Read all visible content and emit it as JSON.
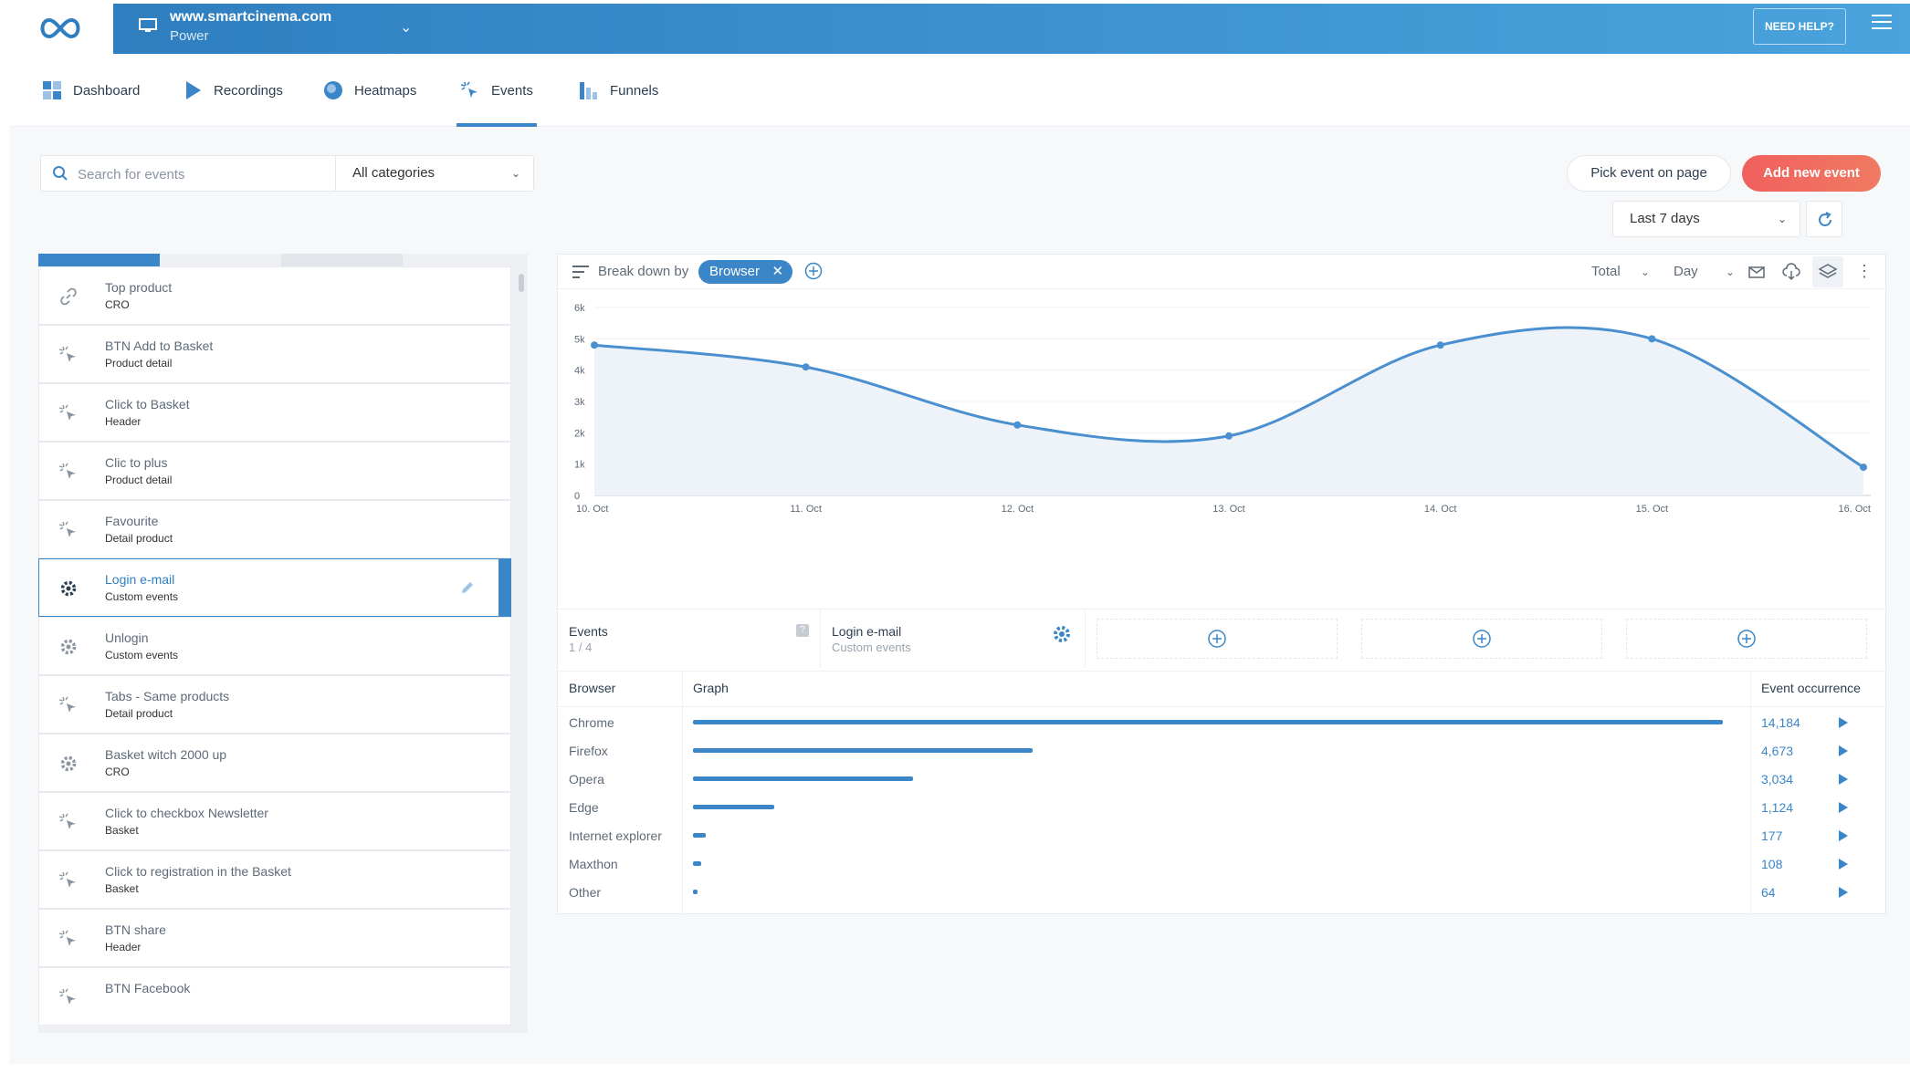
{
  "site": {
    "url": "www.smartcinema.com",
    "plan": "Power"
  },
  "header": {
    "help_label": "NEED HELP?"
  },
  "nav": {
    "tabs": [
      {
        "label": "Dashboard",
        "icon": "dashboard-icon"
      },
      {
        "label": "Recordings",
        "icon": "play-icon"
      },
      {
        "label": "Heatmaps",
        "icon": "heatmap-icon"
      },
      {
        "label": "Events",
        "icon": "cursor-click-icon",
        "active": true
      },
      {
        "label": "Funnels",
        "icon": "funnel-bars-icon"
      }
    ]
  },
  "toolbar": {
    "search_placeholder": "Search for events",
    "category_value": "All categories",
    "pick_label": "Pick event on page",
    "add_label": "Add new event",
    "range_value": "Last 7 days"
  },
  "events": [
    {
      "name": "Top product",
      "category": "CRO",
      "icon": "link-icon"
    },
    {
      "name": "BTN Add to Basket",
      "category": "Product detail",
      "icon": "cursor-click-icon"
    },
    {
      "name": "Click to Basket",
      "category": "Header",
      "icon": "cursor-click-icon"
    },
    {
      "name": "Clic to plus",
      "category": "Product detail",
      "icon": "cursor-click-icon"
    },
    {
      "name": "Favourite",
      "category": "Detail product",
      "icon": "cursor-click-icon"
    },
    {
      "name": "Login e-mail",
      "category": "Custom events",
      "icon": "gear-icon",
      "selected": true
    },
    {
      "name": "Unlogin",
      "category": "Custom events",
      "icon": "gear-icon"
    },
    {
      "name": "Tabs - Same products",
      "category": "Detail product",
      "icon": "cursor-click-icon"
    },
    {
      "name": "Basket witch 2000 up",
      "category": "CRO",
      "icon": "gear-icon"
    },
    {
      "name": "Click to checkbox Newsletter",
      "category": "Basket",
      "icon": "cursor-click-icon"
    },
    {
      "name": "Click to registration in the Basket",
      "category": "Basket",
      "icon": "cursor-click-icon"
    },
    {
      "name": "BTN share",
      "category": "Header",
      "icon": "cursor-click-icon"
    },
    {
      "name": "BTN Facebook",
      "category": "",
      "icon": "cursor-click-icon"
    }
  ],
  "breakdown": {
    "label": "Break down by",
    "chip": "Browser",
    "total_label": "Total",
    "interval_label": "Day"
  },
  "chart_data": {
    "type": "area",
    "categories": [
      "10. Oct",
      "11. Oct",
      "12. Oct",
      "13. Oct",
      "14. Oct",
      "15. Oct",
      "16. Oct"
    ],
    "values": [
      4800,
      4100,
      2250,
      1900,
      4800,
      5000,
      900
    ],
    "yticks": [
      "0",
      "1k",
      "2k",
      "3k",
      "4k",
      "5k",
      "6k"
    ],
    "ylim": [
      0,
      6000
    ],
    "line_color": "#4a8fcf",
    "fill_color": "#eef3fa",
    "grid": true
  },
  "events_summary": {
    "label": "Events",
    "count": "1 / 4",
    "selected_name": "Login e-mail",
    "selected_category": "Custom events"
  },
  "table": {
    "headers": {
      "browser": "Browser",
      "graph": "Graph",
      "occurrence": "Event occurrence"
    },
    "max_value": 14184,
    "rows": [
      {
        "browser": "Chrome",
        "value": 14184,
        "display": "14,184"
      },
      {
        "browser": "Firefox",
        "value": 4673,
        "display": "4,673"
      },
      {
        "browser": "Opera",
        "value": 3034,
        "display": "3,034"
      },
      {
        "browser": "Edge",
        "value": 1124,
        "display": "1,124"
      },
      {
        "browser": "Internet explorer",
        "value": 177,
        "display": "177"
      },
      {
        "browser": "Maxthon",
        "value": 108,
        "display": "108"
      },
      {
        "browser": "Other",
        "value": 64,
        "display": "64"
      }
    ]
  }
}
